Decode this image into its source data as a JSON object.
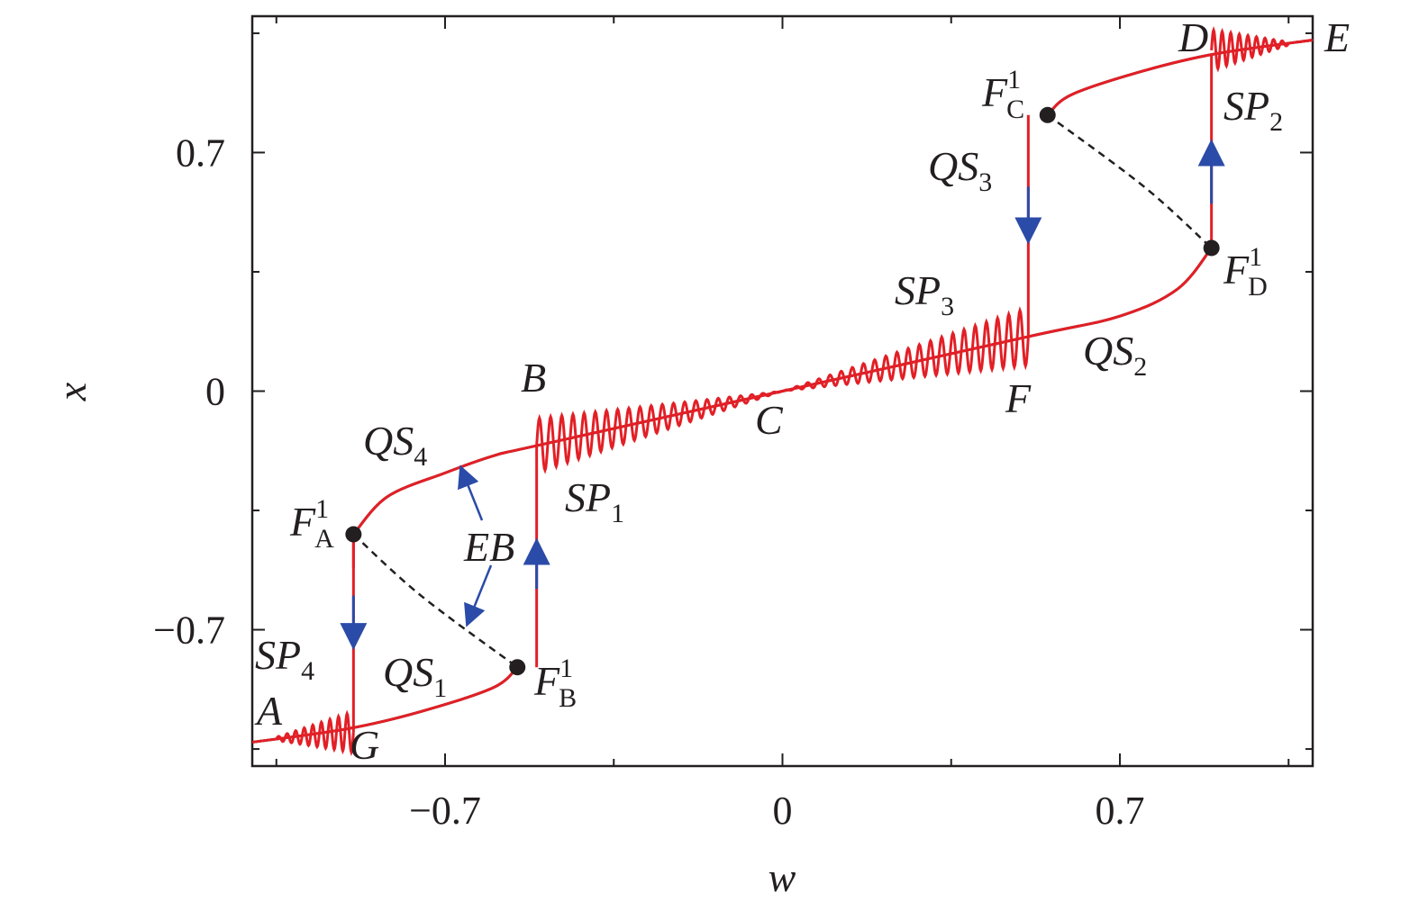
{
  "chart_data": {
    "type": "line",
    "xlabel": "w",
    "ylabel": "x",
    "xlim": [
      -1.1,
      1.1
    ],
    "ylim": [
      -1.1,
      1.1
    ],
    "x_ticks": [
      {
        "value": -0.7,
        "label": "−0.7"
      },
      {
        "value": 0,
        "label": "0"
      },
      {
        "value": 0.7,
        "label": "0.7"
      }
    ],
    "y_ticks": [
      {
        "value": -0.7,
        "label": "−0.7"
      },
      {
        "value": 0,
        "label": "0"
      },
      {
        "value": 0.7,
        "label": "0.7"
      }
    ],
    "series": [
      {
        "role": "stable branch (upper)",
        "color": "#e31f26",
        "points": [
          [
            -0.89,
            -0.42
          ],
          [
            -0.82,
            -0.31
          ],
          [
            -0.7,
            -0.24
          ],
          [
            -0.6,
            -0.19
          ],
          [
            -0.51,
            -0.16
          ],
          [
            0,
            0
          ],
          [
            0.51,
            0.16
          ],
          [
            0.7,
            0.22
          ],
          [
            0.82,
            0.3
          ],
          [
            0.89,
            0.42
          ]
        ]
      },
      {
        "role": "stable branch (lower)",
        "color": "#e31f26",
        "points": [
          [
            -1.1,
            -1.03
          ],
          [
            -0.9,
            -0.99
          ],
          [
            -0.75,
            -0.94
          ],
          [
            -0.6,
            -0.87
          ],
          [
            -0.55,
            -0.81
          ]
        ]
      },
      {
        "role": "stable branch (top)",
        "color": "#e31f26",
        "points": [
          [
            0.55,
            0.81
          ],
          [
            0.6,
            0.87
          ],
          [
            0.75,
            0.94
          ],
          [
            0.9,
            0.99
          ],
          [
            1.1,
            1.03
          ]
        ]
      },
      {
        "role": "unstable branch",
        "style": "dashed",
        "color": "#231f20",
        "points": [
          [
            -0.89,
            -0.42
          ],
          [
            -0.75,
            -0.6
          ],
          [
            -0.55,
            -0.81
          ],
          [
            0.55,
            0.81
          ],
          [
            0.75,
            0.6
          ],
          [
            0.89,
            0.42
          ]
        ]
      }
    ],
    "fold_points": [
      {
        "name": "F_A",
        "label": "F",
        "sup": "1",
        "sub": "A",
        "x": -0.89,
        "y": -0.42
      },
      {
        "name": "F_B",
        "label": "F",
        "sup": "1",
        "sub": "B",
        "x": -0.55,
        "y": -0.81
      },
      {
        "name": "F_C",
        "label": "F",
        "sup": "1",
        "sub": "C",
        "x": 0.55,
        "y": 0.81
      },
      {
        "name": "F_D",
        "label": "F",
        "sup": "1",
        "sub": "D",
        "x": 0.89,
        "y": 0.42
      }
    ],
    "point_labels": [
      "A",
      "B",
      "C",
      "D",
      "E",
      "F",
      "G"
    ],
    "segment_labels": [
      {
        "name": "QS1",
        "base": "QS",
        "sub": "1"
      },
      {
        "name": "QS2",
        "base": "QS",
        "sub": "2"
      },
      {
        "name": "QS3",
        "base": "QS",
        "sub": "3"
      },
      {
        "name": "QS4",
        "base": "QS",
        "sub": "4"
      },
      {
        "name": "SP1",
        "base": "SP",
        "sub": "1"
      },
      {
        "name": "SP2",
        "base": "SP",
        "sub": "2"
      },
      {
        "name": "SP3",
        "base": "SP",
        "sub": "3"
      },
      {
        "name": "SP4",
        "base": "SP",
        "sub": "4"
      },
      {
        "name": "EB",
        "base": "EB",
        "sub": ""
      }
    ],
    "colors": {
      "curve": "#e31f26",
      "arrow": "#2b4ba8",
      "axis": "#231f20"
    }
  }
}
